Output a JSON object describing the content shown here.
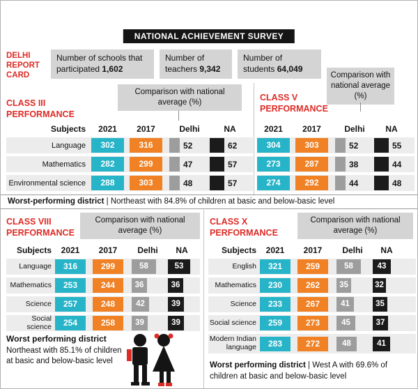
{
  "title": "NATIONAL ACHIEVEMENT SURVEY",
  "colors": {
    "bar_2021": "#27b4c8",
    "bar_2017": "#f08125",
    "bar_delhi": "#9d9d9d",
    "bar_na": "#1b1b1b",
    "accent_red": "#dd2a24",
    "panel_gray": "#d4d4d4"
  },
  "header": {
    "card_label_lines": [
      "DELHI",
      "REPORT",
      "CARD"
    ],
    "stats": [
      {
        "label": "Number of schools that participated",
        "value": "1,602"
      },
      {
        "label": "Number of teachers",
        "value": "9,342"
      },
      {
        "label": "Number of students",
        "value": "64,049"
      }
    ]
  },
  "comparison_label": "Comparison with national average (%)",
  "chart_data": [
    {
      "type": "bar",
      "orientation": "horizontal",
      "title": "CLASS III PERFORMANCE",
      "columns": [
        "Subjects",
        "2021",
        "2017",
        "Delhi",
        "NA"
      ],
      "rows": [
        {
          "subject": "Language",
          "y2021": 302,
          "y2017": 316,
          "delhi": 52,
          "na": 62
        },
        {
          "subject": "Mathematics",
          "y2021": 282,
          "y2017": 299,
          "delhi": 47,
          "na": 57
        },
        {
          "subject": "Environmental science",
          "y2021": 288,
          "y2017": 303,
          "delhi": 48,
          "na": 57
        }
      ],
      "worst_bold": "Worst-performing district",
      "worst_rest": " | Northeast with 84.8% of children at basic and below-basic level"
    },
    {
      "type": "bar",
      "orientation": "horizontal",
      "title": "CLASS V PERFORMANCE",
      "columns": [
        "2021",
        "2017",
        "Delhi",
        "NA"
      ],
      "rows": [
        {
          "y2021": 304,
          "y2017": 303,
          "delhi": 52,
          "na": 55
        },
        {
          "y2021": 273,
          "y2017": 287,
          "delhi": 38,
          "na": 44
        },
        {
          "y2021": 274,
          "y2017": 292,
          "delhi": 44,
          "na": 48
        }
      ]
    },
    {
      "type": "bar",
      "orientation": "horizontal",
      "title": "CLASS VIII PERFORMANCE",
      "columns": [
        "Subjects",
        "2021",
        "2017",
        "Delhi",
        "NA"
      ],
      "rows": [
        {
          "subject": "Language",
          "y2021": 316,
          "y2017": 299,
          "delhi": 58,
          "na": 53
        },
        {
          "subject": "Mathematics",
          "y2021": 253,
          "y2017": 244,
          "delhi": 36,
          "na": 36
        },
        {
          "subject": "Science",
          "y2021": 257,
          "y2017": 248,
          "delhi": 42,
          "na": 39
        },
        {
          "subject": "Social science",
          "y2021": 254,
          "y2017": 258,
          "delhi": 39,
          "na": 39
        }
      ],
      "worst_bold": "Worst performing district",
      "worst_rest": "Northeast with 85.1% of children at basic and below-basic level"
    },
    {
      "type": "bar",
      "orientation": "horizontal",
      "title": "CLASS X PERFORMANCE",
      "columns": [
        "Subjects",
        "2021",
        "2017",
        "Delhi",
        "NA"
      ],
      "rows": [
        {
          "subject": "English",
          "y2021": 321,
          "y2017": 259,
          "delhi": 58,
          "na": 43
        },
        {
          "subject": "Mathematics",
          "y2021": 230,
          "y2017": 262,
          "delhi": 35,
          "na": 32
        },
        {
          "subject": "Science",
          "y2021": 233,
          "y2017": 267,
          "delhi": 41,
          "na": 35
        },
        {
          "subject": "Social science",
          "y2021": 259,
          "y2017": 273,
          "delhi": 45,
          "na": 37
        },
        {
          "subject": "Modern Indian language",
          "y2021": 283,
          "y2017": 272,
          "delhi": 48,
          "na": 41
        }
      ],
      "worst_bold": "Worst performing district",
      "worst_rest": " | West A with 69.6% of children at basic and below-basic level"
    }
  ]
}
